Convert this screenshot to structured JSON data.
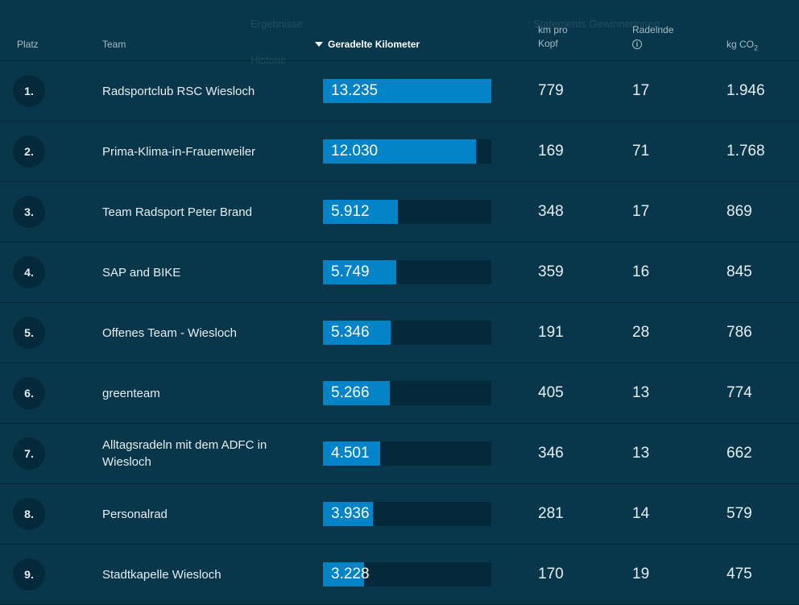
{
  "background_tabs": [
    "Ergebnisse",
    "Historie",
    "Statements Gewinnerinnen"
  ],
  "header": {
    "rank": "Platz",
    "team": "Team",
    "km": "Geradelte Kilometer",
    "km_per_head_line1": "km pro",
    "km_per_head_line2": "Kopf",
    "riders": "Radelnde",
    "riders_info_icon": "info-icon",
    "co2_prefix": "kg CO",
    "co2_sub": "2"
  },
  "colors": {
    "background": "#08364a",
    "row_divider": "#042736",
    "bar_track": "#04293a",
    "bar_fill": "#0083c7"
  },
  "teams": [
    {
      "rank": "1.",
      "name": "Radsportclub RSC Wiesloch",
      "km": "13.235",
      "km_fraction": 1.0,
      "km_per_head": "779",
      "riders": "17",
      "co2": "1.946"
    },
    {
      "rank": "2.",
      "name": "Prima-Klima-in-Frauenweiler",
      "km": "12.030",
      "km_fraction": 0.909,
      "km_per_head": "169",
      "riders": "71",
      "co2": "1.768"
    },
    {
      "rank": "3.",
      "name": "Team Radsport Peter Brand",
      "km": "5.912",
      "km_fraction": 0.447,
      "km_per_head": "348",
      "riders": "17",
      "co2": "869"
    },
    {
      "rank": "4.",
      "name": "SAP and BIKE",
      "km": "5.749",
      "km_fraction": 0.434,
      "km_per_head": "359",
      "riders": "16",
      "co2": "845"
    },
    {
      "rank": "5.",
      "name": "Offenes Team - Wiesloch",
      "km": "5.346",
      "km_fraction": 0.404,
      "km_per_head": "191",
      "riders": "28",
      "co2": "786"
    },
    {
      "rank": "6.",
      "name": "greenteam",
      "km": "5.266",
      "km_fraction": 0.398,
      "km_per_head": "405",
      "riders": "13",
      "co2": "774"
    },
    {
      "rank": "7.",
      "name": "Alltagsradeln mit dem ADFC in Wiesloch",
      "km": "4.501",
      "km_fraction": 0.34,
      "km_per_head": "346",
      "riders": "13",
      "co2": "662"
    },
    {
      "rank": "8.",
      "name": "Personalrad",
      "km": "3.936",
      "km_fraction": 0.297,
      "km_per_head": "281",
      "riders": "14",
      "co2": "579"
    },
    {
      "rank": "9.",
      "name": "Stadtkapelle Wiesloch",
      "km": "3.228",
      "km_fraction": 0.244,
      "km_per_head": "170",
      "riders": "19",
      "co2": "475"
    }
  ]
}
